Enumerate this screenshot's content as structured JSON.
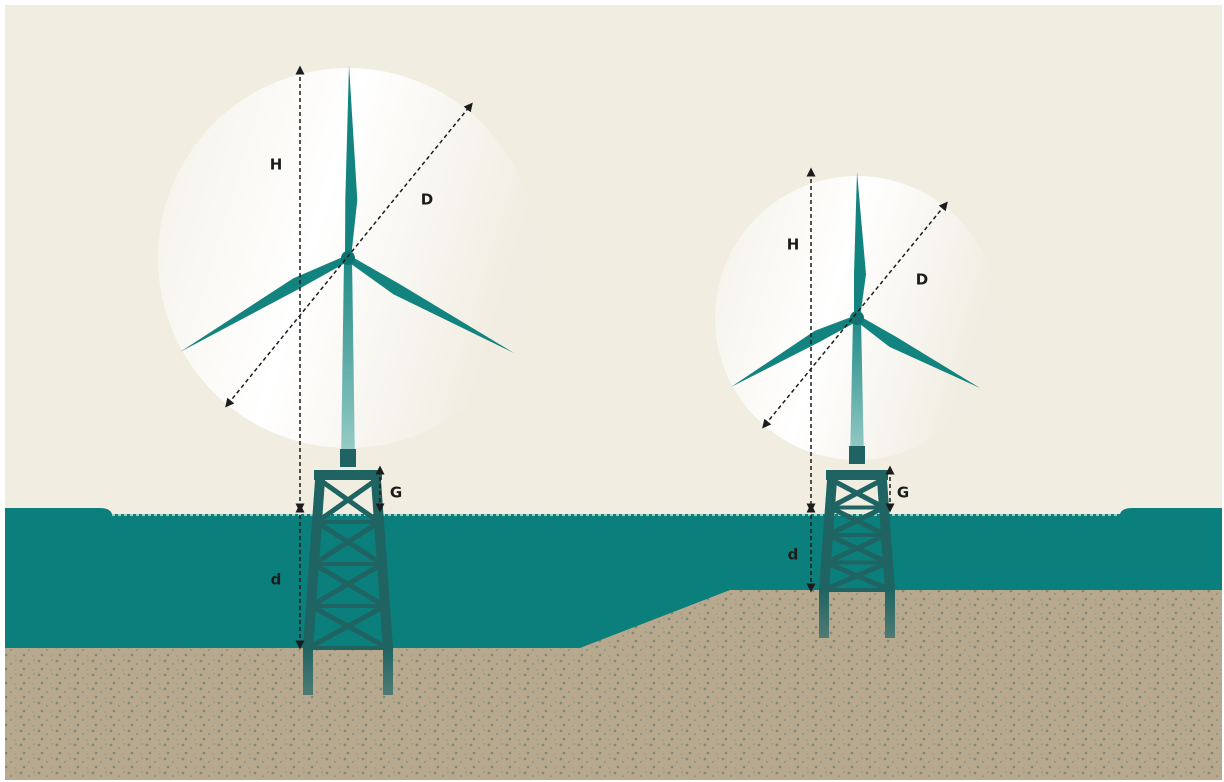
{
  "turbines": [
    {
      "hub_height": "H",
      "rotor_diameter": "D",
      "gap": "G",
      "water_depth": "d"
    },
    {
      "hub_height": "H",
      "rotor_diameter": "D",
      "gap": "G",
      "water_depth": "d"
    }
  ]
}
